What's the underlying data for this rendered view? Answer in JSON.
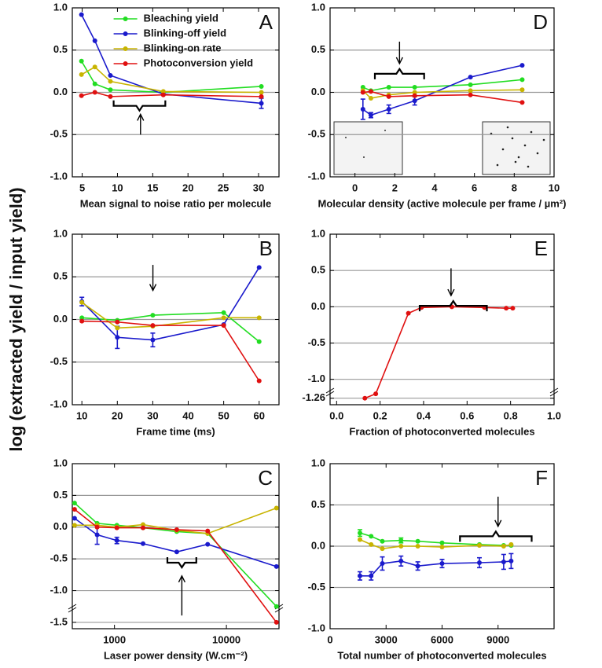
{
  "chart_data": [
    {
      "type": "line",
      "label": "A",
      "xlabel": "Mean signal to noise ratio per molecule",
      "x": [
        4.9,
        6.8,
        9.0,
        16.5,
        30.4
      ],
      "xlim": [
        3.6,
        32.9
      ],
      "xticks": [
        5,
        10,
        15,
        20,
        25,
        30
      ],
      "ylim": [
        -1,
        1
      ],
      "yticks": [
        {
          "value": -1,
          "label": "-1.0"
        },
        {
          "value": -0.5,
          "label": "-0.5"
        },
        {
          "value": 0,
          "label": "0.0"
        },
        {
          "value": 0.5,
          "label": "0.5"
        },
        {
          "value": 1,
          "label": "1.0"
        }
      ],
      "grid": true,
      "legend": "upper left",
      "series": [
        {
          "name": "Bleaching yield",
          "color": "#22dd22",
          "values": [
            0.37,
            0.1,
            0.03,
            0.0,
            0.07
          ]
        },
        {
          "name": "Blinking-off yield",
          "color": "#1a1acc",
          "values": [
            0.92,
            0.61,
            0.2,
            -0.02,
            -0.13
          ],
          "errors": [
            null,
            null,
            null,
            null,
            0.06
          ]
        },
        {
          "name": "Blinking-on rate",
          "color": "#c8b400",
          "values": [
            0.21,
            0.3,
            0.13,
            0.01,
            0.0
          ]
        },
        {
          "name": "Photoconversion yield",
          "color": "#e01010",
          "values": [
            -0.04,
            0.0,
            -0.05,
            -0.03,
            -0.05
          ]
        }
      ]
    },
    {
      "type": "line",
      "label": "B",
      "xlabel": "Frame time (ms)",
      "ylabel": "log (extracted yield / input yield)",
      "x": [
        10,
        20,
        30,
        50,
        60
      ],
      "xlim": [
        7.3,
        65.6
      ],
      "xticks": [
        10,
        20,
        30,
        40,
        50,
        60
      ],
      "ylim": [
        -1,
        1
      ],
      "yticks": [
        {
          "value": -1,
          "label": "-1.0"
        },
        {
          "value": -0.5,
          "label": "-0.5"
        },
        {
          "value": 0,
          "label": "0.0"
        },
        {
          "value": 0.5,
          "label": "0.5"
        },
        {
          "value": 1,
          "label": "1.0"
        }
      ],
      "grid": true,
      "series": [
        {
          "name": "Bleaching yield",
          "color": "#22dd22",
          "values": [
            0.02,
            -0.01,
            0.05,
            0.08,
            -0.26
          ]
        },
        {
          "name": "Blinking-off yield",
          "color": "#1a1acc",
          "values": [
            0.21,
            -0.21,
            -0.24,
            -0.06,
            0.61
          ],
          "errors": [
            0.05,
            0.13,
            0.08,
            null,
            null
          ]
        },
        {
          "name": "Blinking-on rate",
          "color": "#c8b400",
          "values": [
            0.2,
            -0.1,
            -0.08,
            0.02,
            0.02
          ]
        },
        {
          "name": "Photoconversion yield",
          "color": "#e01010",
          "values": [
            -0.02,
            -0.03,
            -0.07,
            -0.07,
            -0.72
          ]
        }
      ]
    },
    {
      "type": "line",
      "label": "C",
      "xlabel": "Laser power density (W.cm⁻²)",
      "xscale": "log",
      "x": [
        440,
        700,
        1050,
        1800,
        3600,
        6800,
        28000
      ],
      "xlim": [
        420,
        29500
      ],
      "xticks": [
        1000,
        10000
      ],
      "ylim": [
        -1.6,
        1
      ],
      "yticks": [
        {
          "value": -1.5,
          "label": "-1.5"
        },
        {
          "value": -1,
          "label": "-1.0"
        },
        {
          "value": -0.5,
          "label": "-0.5"
        },
        {
          "value": 0,
          "label": "0.0"
        },
        {
          "value": 0.5,
          "label": "0.5"
        },
        {
          "value": 1,
          "label": "1.0"
        }
      ],
      "grid": true,
      "series": [
        {
          "name": "Bleaching yield",
          "color": "#22dd22",
          "values": [
            0.38,
            0.06,
            0.03,
            -0.01,
            -0.07,
            -0.1,
            -1.25
          ]
        },
        {
          "name": "Blinking-off yield",
          "color": "#1a1acc",
          "values": [
            0.14,
            -0.12,
            -0.21,
            -0.26,
            -0.39,
            -0.27,
            -0.62
          ],
          "errors": [
            null,
            0.15,
            0.05,
            null,
            null,
            null,
            null
          ]
        },
        {
          "name": "Blinking-on rate",
          "color": "#c8b400",
          "values": [
            0.03,
            0.03,
            0.0,
            0.04,
            -0.05,
            -0.1,
            0.3
          ]
        },
        {
          "name": "Photoconversion yield",
          "color": "#e01010",
          "values": [
            0.28,
            0.0,
            -0.01,
            -0.01,
            -0.04,
            -0.06,
            -1.5
          ]
        }
      ]
    },
    {
      "type": "line",
      "label": "D",
      "xlabel": "Molecular density (active molecule per frame / µm²)",
      "x": [
        0.4,
        0.8,
        1.7,
        3.0,
        5.8,
        8.4
      ],
      "xlim": [
        -1.25,
        10
      ],
      "xticks": [
        0,
        2,
        4,
        6,
        8,
        10
      ],
      "ylim": [
        -1,
        1
      ],
      "yticks": [
        {
          "value": -1,
          "label": "-1.0"
        },
        {
          "value": -0.5,
          "label": "-0.5"
        },
        {
          "value": 0,
          "label": "0.0"
        },
        {
          "value": 0.5,
          "label": "0.5"
        },
        {
          "value": 1,
          "label": "1.0"
        }
      ],
      "grid": true,
      "series": [
        {
          "name": "Bleaching yield",
          "color": "#22dd22",
          "values": [
            0.06,
            0.02,
            0.06,
            0.06,
            0.09,
            0.15
          ]
        },
        {
          "name": "Blinking-off yield",
          "color": "#1a1acc",
          "values": [
            -0.2,
            -0.27,
            -0.2,
            -0.1,
            0.18,
            0.32
          ],
          "errors": [
            0.12,
            0.03,
            0.05,
            0.05,
            null,
            null
          ]
        },
        {
          "name": "Blinking-on rate",
          "color": "#c8b400",
          "values": [
            0.02,
            -0.07,
            -0.03,
            0.0,
            0.02,
            0.03
          ]
        },
        {
          "name": "Photoconversion yield",
          "color": "#e01010",
          "values": [
            0.0,
            0.01,
            -0.05,
            -0.04,
            -0.03,
            -0.12
          ]
        }
      ]
    },
    {
      "type": "line",
      "label": "E",
      "xlabel": "Fraction of photoconverted molecules",
      "x": [
        0.13,
        0.18,
        0.33,
        0.39,
        0.53,
        0.68,
        0.78,
        0.81
      ],
      "xlim": [
        -0.03,
        1
      ],
      "xticks": [
        {
          "value": 0,
          "label": "0.0"
        },
        0.2,
        0.4,
        0.6,
        0.8,
        {
          "value": 1,
          "label": "1.0"
        }
      ],
      "ylim": [
        -1.35,
        1
      ],
      "yticks": [
        {
          "value": -1.26,
          "label": "-1.26"
        },
        {
          "value": -1,
          "label": "-1.0"
        },
        {
          "value": -0.5,
          "label": "-0.5"
        },
        {
          "value": 0,
          "label": "0.0"
        },
        {
          "value": 0.5,
          "label": "0.5"
        },
        {
          "value": 1,
          "label": "1.0"
        }
      ],
      "grid": true,
      "series": [
        {
          "name": "Photoconversion yield",
          "color": "#e01010",
          "values": [
            -1.26,
            -1.2,
            -0.09,
            -0.01,
            0.0,
            -0.01,
            -0.02,
            -0.02
          ]
        }
      ]
    },
    {
      "type": "line",
      "label": "F",
      "xlabel": "Total number of photoconverted molecules",
      "x": [
        1600,
        2200,
        2800,
        3800,
        4700,
        6000,
        8000,
        9300,
        9700
      ],
      "xlim": [
        0,
        12000
      ],
      "xticks": [
        0,
        3000,
        6000,
        9000
      ],
      "ylim": [
        -1,
        1
      ],
      "yticks": [
        {
          "value": -1,
          "label": "-1.0"
        },
        {
          "value": -0.5,
          "label": "-0.5"
        },
        {
          "value": 0,
          "label": "0.0"
        },
        {
          "value": 0.5,
          "label": "0.5"
        },
        {
          "value": 1,
          "label": "1.0"
        }
      ],
      "grid": true,
      "series": [
        {
          "name": "Bleaching yield",
          "color": "#22dd22",
          "values": [
            0.16,
            0.12,
            0.06,
            0.07,
            0.06,
            0.04,
            0.02,
            0.01,
            0.01
          ],
          "errors": [
            0.04,
            null,
            null,
            0.03,
            null,
            null,
            null,
            null,
            null
          ]
        },
        {
          "name": "Blinking-on rate",
          "color": "#c8b400",
          "values": [
            0.08,
            0.02,
            -0.03,
            0.0,
            0.0,
            -0.01,
            0.01,
            0.0,
            0.02
          ]
        },
        {
          "name": "Blinking-off yield",
          "color": "#1a1acc",
          "values": [
            -0.36,
            -0.36,
            -0.21,
            -0.18,
            -0.24,
            -0.21,
            -0.2,
            -0.19,
            -0.18
          ],
          "errors": [
            0.05,
            0.05,
            0.08,
            0.06,
            0.05,
            0.05,
            0.06,
            0.09,
            0.09
          ]
        }
      ]
    }
  ]
}
